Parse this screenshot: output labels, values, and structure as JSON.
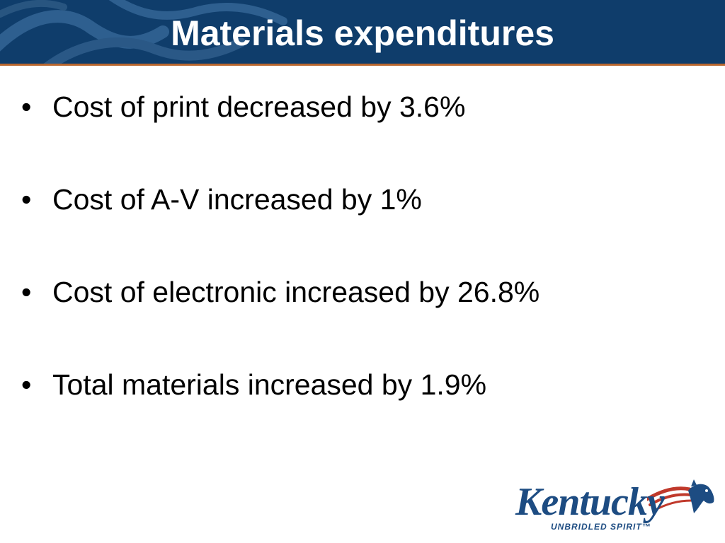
{
  "slide": {
    "title": "Materials expenditures",
    "bullet_symbol": "•",
    "bullets": [
      "Cost of print decreased by 3.6%",
      "Cost of A-V increased by 1%",
      "Cost of electronic increased by 26.8%",
      "Total materials increased by 1.9%"
    ]
  },
  "logo": {
    "wordmark": "Kentucky",
    "tagline": "UNBRIDLED SPIRIT",
    "trademark": "™"
  },
  "colors": {
    "header_bg": "#0f3d6b",
    "header_rule": "#b9672f",
    "logo_blue": "#1d4c82",
    "logo_red": "#c0392b"
  }
}
